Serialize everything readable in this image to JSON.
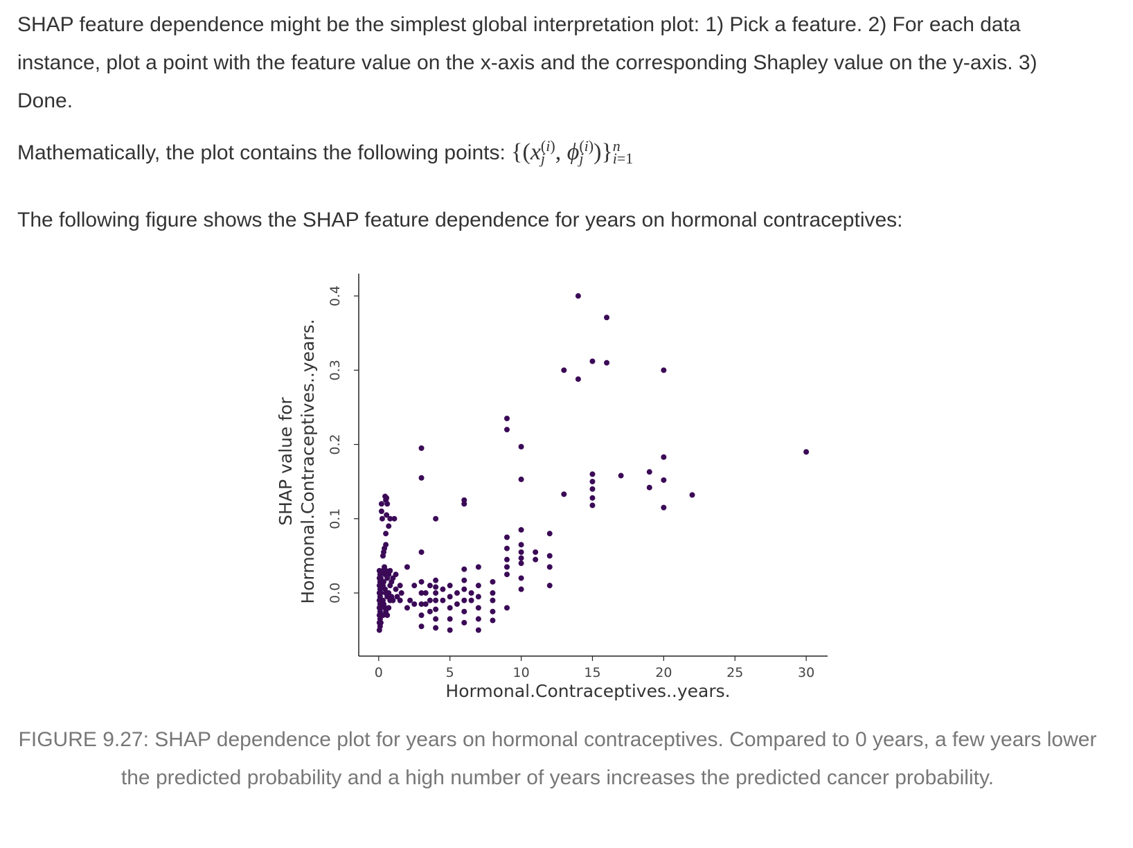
{
  "text": {
    "para1": "SHAP feature dependence might be the simplest global interpretation plot: 1) Pick a feature. 2) For each data instance, plot a point with the feature value on the x-axis and the corresponding Shapley value on the y-axis. 3) Done.",
    "para2_lead": "Mathematically, the plot contains the following points:",
    "para3": "The following figure shows the SHAP feature dependence for years on hormonal contraceptives:",
    "caption": "FIGURE 9.27: SHAP dependence plot for years on hormonal contraceptives. Compared to 0 years, a few years lower the predicted probability and a high number of years increases the predicted cancer probability."
  },
  "colors": {
    "point": "#3b0a57",
    "axis": "#222222",
    "text": "#333333",
    "caption": "#777777"
  },
  "chart_data": {
    "type": "scatter",
    "xlabel": "Hormonal.Contraceptives..years.",
    "ylabel": [
      "SHAP value for",
      "Hormonal.Contraceptives..years."
    ],
    "xticks": [
      0,
      5,
      10,
      15,
      20,
      25,
      30
    ],
    "yticks": [
      0.0,
      0.1,
      0.2,
      0.3,
      0.4
    ],
    "xlim": [
      -1.4,
      31.5
    ],
    "ylim": [
      -0.085,
      0.43
    ],
    "grid": false,
    "points": [
      [
        0.05,
        0.03
      ],
      [
        0.05,
        0.02
      ],
      [
        0.05,
        0.01
      ],
      [
        0.05,
        0.0
      ],
      [
        0.05,
        -0.01
      ],
      [
        0.05,
        -0.02
      ],
      [
        0.05,
        -0.03
      ],
      [
        0.05,
        -0.04
      ],
      [
        0.05,
        -0.05
      ],
      [
        0.1,
        0.025
      ],
      [
        0.1,
        0.015
      ],
      [
        0.1,
        0.005
      ],
      [
        0.1,
        -0.005
      ],
      [
        0.1,
        -0.015
      ],
      [
        0.1,
        -0.025
      ],
      [
        0.1,
        -0.035
      ],
      [
        0.1,
        -0.045
      ],
      [
        0.15,
        0.02
      ],
      [
        0.15,
        0.0
      ],
      [
        0.15,
        -0.02
      ],
      [
        0.15,
        -0.04
      ],
      [
        0.2,
        0.12
      ],
      [
        0.2,
        0.11
      ],
      [
        0.25,
        0.1
      ],
      [
        0.3,
        0.05
      ],
      [
        0.35,
        0.055
      ],
      [
        0.4,
        0.035
      ],
      [
        0.4,
        0.06
      ],
      [
        0.5,
        0.065
      ],
      [
        0.5,
        0.08
      ],
      [
        0.45,
        0.13
      ],
      [
        0.5,
        0.125
      ],
      [
        0.55,
        0.128
      ],
      [
        0.6,
        0.12
      ],
      [
        0.55,
        0.105
      ],
      [
        0.3,
        0.03
      ],
      [
        0.3,
        0.01
      ],
      [
        0.3,
        -0.01
      ],
      [
        0.3,
        -0.03
      ],
      [
        0.35,
        0.015
      ],
      [
        0.35,
        -0.015
      ],
      [
        0.45,
        0.025
      ],
      [
        0.45,
        0.005
      ],
      [
        0.45,
        -0.02
      ],
      [
        0.5,
        0.03
      ],
      [
        0.5,
        0.0
      ],
      [
        0.5,
        -0.025
      ],
      [
        0.6,
        0.02
      ],
      [
        0.6,
        -0.005
      ],
      [
        0.6,
        -0.03
      ],
      [
        0.7,
        0.025
      ],
      [
        0.7,
        0.0
      ],
      [
        0.7,
        -0.02
      ],
      [
        0.8,
        0.03
      ],
      [
        0.8,
        0.01
      ],
      [
        0.8,
        -0.01
      ],
      [
        0.9,
        0.015
      ],
      [
        0.9,
        -0.005
      ],
      [
        1.0,
        0.02
      ],
      [
        1.0,
        -0.01
      ],
      [
        0.7,
        0.09
      ],
      [
        0.8,
        0.1
      ],
      [
        1.1,
        0.1
      ],
      [
        1.2,
        0.005
      ],
      [
        1.2,
        0.025
      ],
      [
        1.3,
        -0.005
      ],
      [
        1.5,
        0.01
      ],
      [
        1.5,
        -0.01
      ],
      [
        1.6,
        0.0
      ],
      [
        2.0,
        0.035
      ],
      [
        2.0,
        -0.02
      ],
      [
        2.2,
        -0.01
      ],
      [
        2.5,
        0.01
      ],
      [
        2.5,
        -0.015
      ],
      [
        3.0,
        0.195
      ],
      [
        3.0,
        0.155
      ],
      [
        3.0,
        0.055
      ],
      [
        3.0,
        0.015
      ],
      [
        3.0,
        0.0
      ],
      [
        3.0,
        -0.015
      ],
      [
        3.0,
        -0.03
      ],
      [
        3.0,
        -0.045
      ],
      [
        3.3,
        0.0
      ],
      [
        3.3,
        -0.015
      ],
      [
        3.6,
        0.01
      ],
      [
        3.6,
        -0.01
      ],
      [
        3.6,
        -0.025
      ],
      [
        4.0,
        0.1
      ],
      [
        4.0,
        0.017
      ],
      [
        4.0,
        0.008
      ],
      [
        4.0,
        0.0
      ],
      [
        4.0,
        -0.01
      ],
      [
        4.0,
        -0.022
      ],
      [
        4.0,
        -0.035
      ],
      [
        4.0,
        -0.047
      ],
      [
        4.5,
        0.005
      ],
      [
        4.5,
        -0.01
      ],
      [
        5.0,
        0.01
      ],
      [
        5.0,
        -0.005
      ],
      [
        5.0,
        -0.02
      ],
      [
        5.0,
        -0.035
      ],
      [
        5.0,
        -0.05
      ],
      [
        5.5,
        0.0
      ],
      [
        5.5,
        -0.015
      ],
      [
        6.0,
        0.125
      ],
      [
        6.0,
        0.12
      ],
      [
        6.0,
        0.032
      ],
      [
        6.0,
        0.017
      ],
      [
        6.0,
        0.005
      ],
      [
        6.0,
        -0.01
      ],
      [
        6.0,
        -0.025
      ],
      [
        6.0,
        -0.04
      ],
      [
        6.5,
        0.0
      ],
      [
        6.5,
        -0.01
      ],
      [
        7.0,
        0.035
      ],
      [
        7.0,
        0.01
      ],
      [
        7.0,
        -0.005
      ],
      [
        7.0,
        -0.02
      ],
      [
        7.0,
        -0.035
      ],
      [
        7.0,
        -0.05
      ],
      [
        8.0,
        0.015
      ],
      [
        8.0,
        0.0
      ],
      [
        8.0,
        -0.01
      ],
      [
        8.0,
        -0.025
      ],
      [
        8.0,
        -0.037
      ],
      [
        9.0,
        0.235
      ],
      [
        9.0,
        0.22
      ],
      [
        9.0,
        0.075
      ],
      [
        9.0,
        0.06
      ],
      [
        9.0,
        0.045
      ],
      [
        9.0,
        0.035
      ],
      [
        9.0,
        0.025
      ],
      [
        9.0,
        -0.02
      ],
      [
        10.0,
        0.197
      ],
      [
        10.0,
        0.153
      ],
      [
        10.0,
        0.085
      ],
      [
        10.0,
        0.065
      ],
      [
        10.0,
        0.055
      ],
      [
        10.0,
        0.047
      ],
      [
        10.0,
        0.04
      ],
      [
        10.0,
        0.02
      ],
      [
        10.0,
        0.005
      ],
      [
        11.0,
        0.055
      ],
      [
        11.0,
        0.045
      ],
      [
        12.0,
        0.08
      ],
      [
        12.0,
        0.05
      ],
      [
        12.0,
        0.035
      ],
      [
        12.0,
        0.01
      ],
      [
        13.0,
        0.3
      ],
      [
        13.0,
        0.133
      ],
      [
        14.0,
        0.4
      ],
      [
        14.0,
        0.288
      ],
      [
        15.0,
        0.312
      ],
      [
        15.0,
        0.16
      ],
      [
        15.0,
        0.15
      ],
      [
        15.0,
        0.14
      ],
      [
        15.0,
        0.128
      ],
      [
        15.0,
        0.118
      ],
      [
        16.0,
        0.371
      ],
      [
        16.0,
        0.31
      ],
      [
        17.0,
        0.158
      ],
      [
        19.0,
        0.163
      ],
      [
        19.0,
        0.142
      ],
      [
        20.0,
        0.3
      ],
      [
        20.0,
        0.183
      ],
      [
        20.0,
        0.152
      ],
      [
        20.0,
        0.115
      ],
      [
        22.0,
        0.132
      ],
      [
        30.0,
        0.19
      ]
    ]
  }
}
